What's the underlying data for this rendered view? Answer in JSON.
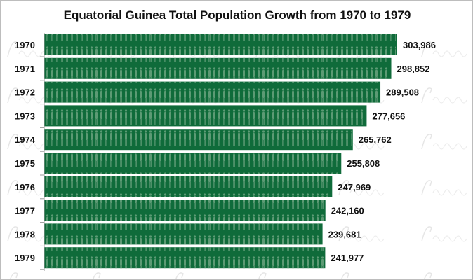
{
  "chart_data": {
    "type": "bar",
    "orientation": "horizontal",
    "title": "Equatorial Guinea Total Population Growth from 1970 to 1979",
    "categories": [
      "1970",
      "1971",
      "1972",
      "1973",
      "1974",
      "1975",
      "1976",
      "1977",
      "1978",
      "1979"
    ],
    "values": [
      303986,
      298852,
      289508,
      277656,
      265762,
      255808,
      247969,
      242160,
      239681,
      241977
    ],
    "data_labels": [
      "303,986",
      "298,852",
      "289,508",
      "277,656",
      "265,762",
      "255,808",
      "247,969",
      "242,160",
      "239,681",
      "241,977"
    ],
    "xlim": [
      0,
      303986
    ],
    "grid": false,
    "legend": "none",
    "colors": {
      "bar": "#0f6b3a",
      "figure": "#5c9a74"
    },
    "watermark": "Afrolumens"
  }
}
